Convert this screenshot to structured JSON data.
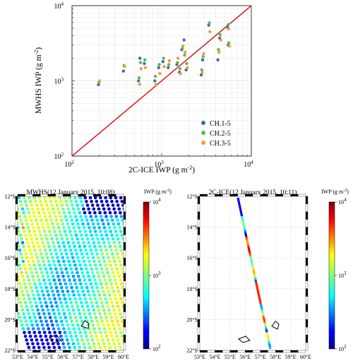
{
  "chart_data": [
    {
      "type": "scatter",
      "xscale": "log",
      "yscale": "log",
      "xlim": [
        100,
        10000
      ],
      "ylim": [
        100,
        10000
      ],
      "xlabel": "2C-ICE IWP (g m$^{-2}$)",
      "ylabel": "MWHS IWP (g m$^{-2}$)",
      "xlabel_text": "2C-ICE IWP (g m",
      "ylabel_text": "MWHS IWP (g m",
      "label_suffix": ")",
      "label_exp": "-2",
      "xtick_labels": [
        "10",
        "10",
        "10"
      ],
      "xtick_exps": [
        "2",
        "3",
        "4"
      ],
      "ytick_labels": [
        "10",
        "10",
        "10"
      ],
      "ytick_exps": [
        "2",
        "3",
        "4"
      ],
      "grid": true,
      "legend_position": "bottom-right",
      "reference_line": {
        "x": [
          100,
          10000
        ],
        "y": [
          100,
          10000
        ],
        "color": "#d62728"
      },
      "series": [
        {
          "name": "CH.1-5",
          "color": "#3a6ea5",
          "x": [
            200,
            380,
            560,
            580,
            650,
            850,
            940,
            1050,
            1200,
            1500,
            1600,
            1700,
            1800,
            1900,
            2800,
            2900,
            3400,
            4300,
            4500,
            5500,
            5600
          ],
          "y": [
            890,
            1350,
            1000,
            2000,
            1700,
            1000,
            1500,
            1800,
            1500,
            1650,
            1300,
            2600,
            3500,
            1400,
            1200,
            1900,
            5500,
            1900,
            3700,
            5200,
            3000
          ]
        },
        {
          "name": "CH.2-5",
          "color": "#5db85c",
          "x": [
            200,
            380,
            560,
            580,
            650,
            850,
            940,
            1050,
            1200,
            1500,
            1600,
            1700,
            1800,
            1900,
            2800,
            2900,
            3400,
            4300,
            4500,
            5500,
            5600
          ],
          "y": [
            960,
            1600,
            1100,
            1750,
            1900,
            1150,
            1650,
            2000,
            1650,
            1750,
            1450,
            2700,
            2200,
            1700,
            1400,
            2100,
            5900,
            2600,
            4100,
            5600,
            3200
          ]
        },
        {
          "name": "CH.3-5",
          "color": "#f59a3c",
          "x": [
            200,
            380,
            560,
            580,
            650,
            850,
            940,
            1050,
            1200,
            1500,
            1600,
            1700,
            1800,
            1900,
            2800,
            2900,
            3400,
            4300,
            4500,
            5500,
            5600
          ],
          "y": [
            1000,
            1550,
            900,
            1450,
            1500,
            900,
            1250,
            1550,
            1850,
            2000,
            1250,
            2900,
            2400,
            1500,
            1300,
            2300,
            4500,
            2400,
            3500,
            4900,
            2900
          ]
        }
      ]
    },
    {
      "type": "heatmap",
      "title": "MWHS(12 January 2015, 10:08)",
      "lon_range": [
        53,
        60
      ],
      "lat_range": [
        -22,
        -12
      ],
      "xtick_labels": [
        "53°E",
        "54°E",
        "55°E",
        "56°E",
        "57°E",
        "58°E",
        "59°E",
        "60°E"
      ],
      "ytick_labels": [
        "12°S",
        "14°S",
        "16°S",
        "18°S",
        "20°S",
        "22°S"
      ],
      "colorbar": {
        "label": "IWP (g m",
        "label_suffix": ")",
        "label_exp": "-2",
        "scale": "log",
        "range": [
          100,
          10000
        ],
        "tick_labels": [
          "10",
          "10",
          "10"
        ],
        "tick_exps": [
          "2",
          "3",
          "4"
        ]
      }
    },
    {
      "type": "heatmap",
      "title": "2C-ICE(12 January 2015, 10:11)",
      "lon_range": [
        53,
        60
      ],
      "lat_range": [
        -22,
        -12
      ],
      "xtick_labels": [
        "53°E",
        "54°E",
        "55°E",
        "56°E",
        "57°E",
        "58°E",
        "59°E",
        "60°E"
      ],
      "ytick_labels": [
        "12°S",
        "14°S",
        "16°S",
        "18°S",
        "20°S",
        "22°S"
      ],
      "colorbar": {
        "label": "IWP (g m",
        "label_suffix": ")",
        "label_exp": "-2",
        "scale": "log",
        "range": [
          100,
          10000
        ],
        "tick_labels": [
          "10",
          "10",
          "10"
        ],
        "tick_exps": [
          "2",
          "3",
          "4"
        ]
      }
    }
  ]
}
